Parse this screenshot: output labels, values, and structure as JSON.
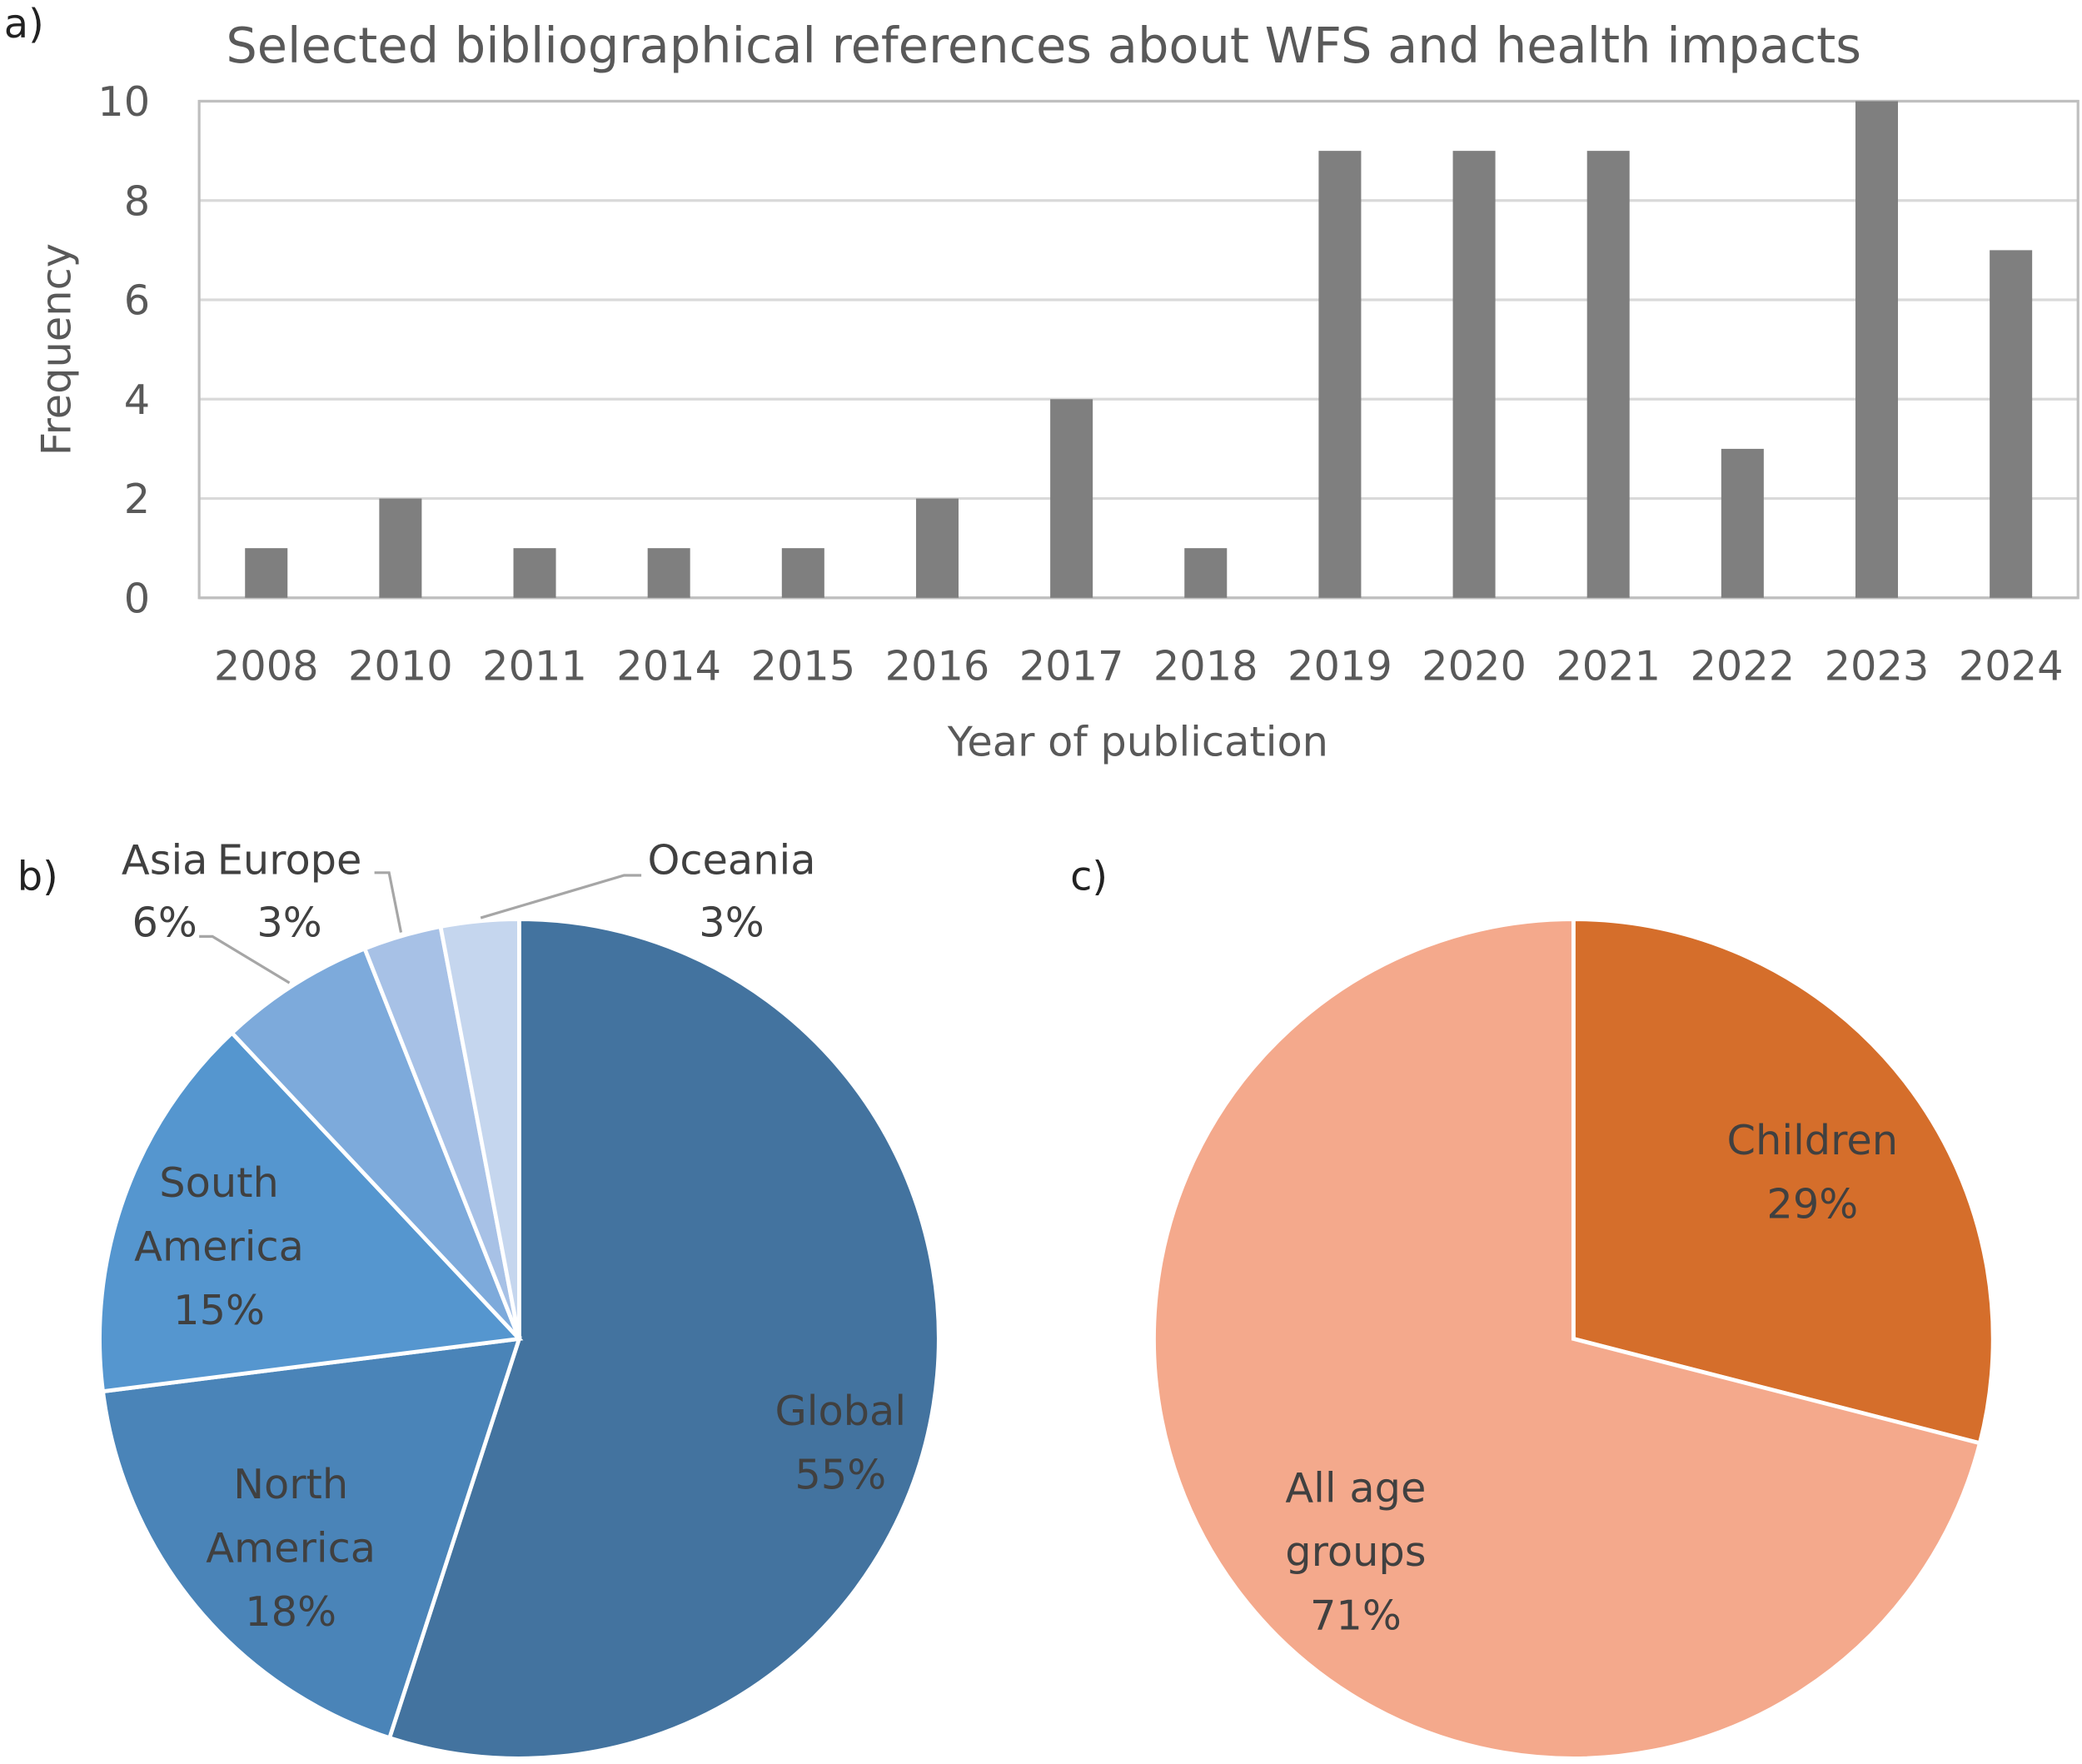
{
  "chart_data": [
    {
      "panel_label": "a)",
      "type": "bar",
      "title": "Selected bibliographical references about WFS and health impacts",
      "xlabel": "Year of publication",
      "ylabel": "Frequency",
      "ylim": [
        0,
        10
      ],
      "yticks": [
        "0",
        "2",
        "4",
        "6",
        "8",
        "10"
      ],
      "grid": true,
      "categories": [
        "2008",
        "2010",
        "2011",
        "2014",
        "2015",
        "2016",
        "2017",
        "2018",
        "2019",
        "2020",
        "2021",
        "2022",
        "2023",
        "2024"
      ],
      "values": [
        1,
        2,
        1,
        1,
        1,
        2,
        4,
        1,
        9,
        9,
        9,
        3,
        10,
        7
      ],
      "color": "#7f7f7f"
    },
    {
      "panel_label": "b)",
      "type": "pie",
      "slices": [
        {
          "label": [
            "Global"
          ],
          "pct_label": "55%",
          "value": 55,
          "color": "#43739f"
        },
        {
          "label": [
            "North",
            "America"
          ],
          "pct_label": "18%",
          "value": 18,
          "color": "#4a84b8"
        },
        {
          "label": [
            "South",
            "America"
          ],
          "pct_label": "15%",
          "value": 15,
          "color": "#5596cf"
        },
        {
          "label": [
            "Asia"
          ],
          "pct_label": "6%",
          "value": 6,
          "color": "#7daadb"
        },
        {
          "label": [
            "Europe"
          ],
          "pct_label": "3%",
          "value": 3,
          "color": "#a7c1e6"
        },
        {
          "label": [
            "Oceania"
          ],
          "pct_label": "3%",
          "value": 3,
          "color": "#c5d6ee"
        }
      ]
    },
    {
      "panel_label": "c)",
      "type": "pie",
      "slices": [
        {
          "label": [
            "Children"
          ],
          "pct_label": "29%",
          "value": 29,
          "color": "#d56e2b"
        },
        {
          "label": [
            "All age",
            "groups"
          ],
          "pct_label": "71%",
          "value": 71,
          "color": "#f4a98c"
        }
      ]
    }
  ]
}
